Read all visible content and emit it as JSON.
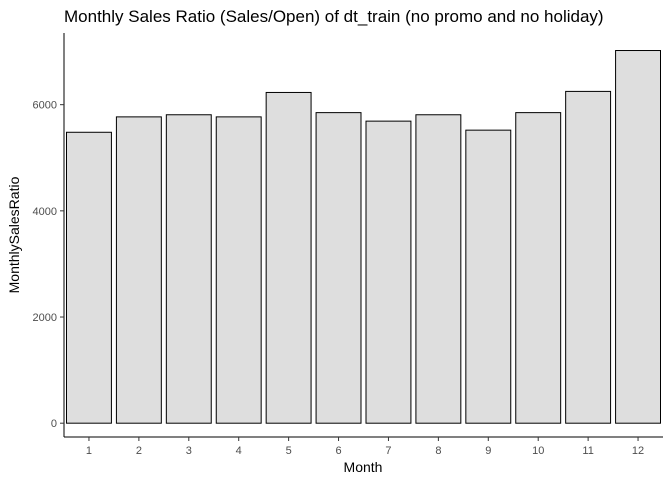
{
  "chart_data": {
    "type": "bar",
    "title": "Monthly Sales Ratio (Sales/Open) of dt_train (no promo and no holiday)",
    "xlabel": "Month",
    "ylabel": "MonthlySalesRatio",
    "categories": [
      "1",
      "2",
      "3",
      "4",
      "5",
      "6",
      "7",
      "8",
      "9",
      "10",
      "11",
      "12"
    ],
    "values": [
      5480,
      5770,
      5810,
      5770,
      6230,
      5850,
      5690,
      5810,
      5520,
      5850,
      6250,
      7020
    ],
    "yticks": [
      0,
      2000,
      4000,
      6000
    ],
    "ytick_labels": [
      "0",
      "2000",
      "4000",
      "6000"
    ],
    "ylim": [
      -260,
      7350
    ],
    "grid": false,
    "legend": "none",
    "bar_fill": "#DEDEDE",
    "bar_stroke": "#000000"
  }
}
